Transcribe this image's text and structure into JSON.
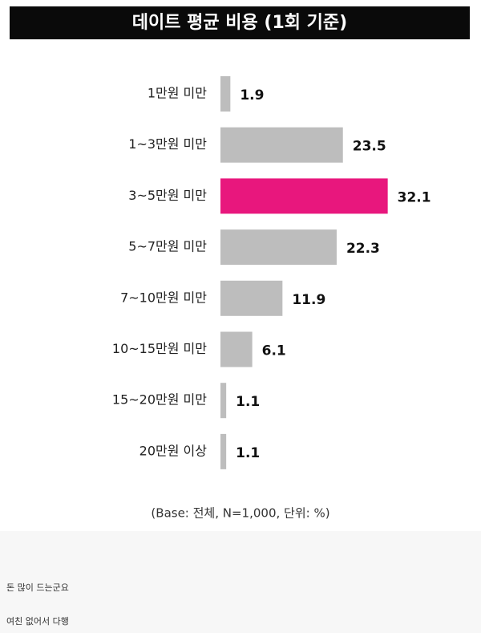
{
  "chart_data": {
    "type": "hbar",
    "title": "데이트 평균 비용 (1회 기준)",
    "categories": [
      "1만원 미만",
      "1~3만원 미만",
      "3~5만원 미만",
      "5~7만원 미만",
      "7~10만원 미만",
      "10~15만원 미만",
      "15~20만원 미만",
      "20만원 이상"
    ],
    "values": [
      1.9,
      23.5,
      32.1,
      22.3,
      11.9,
      6.1,
      1.1,
      1.1
    ],
    "colors": [
      "#bdbdbd",
      "#bdbdbd",
      "#e8177d",
      "#bdbdbd",
      "#bdbdbd",
      "#bdbdbd",
      "#bdbdbd",
      "#bdbdbd"
    ],
    "note": "(Base: 전체, N=1,000, 단위: %)"
  },
  "post": {
    "lines": [
      "돈 많이 드는군요",
      "여친 없어서 다행"
    ]
  }
}
